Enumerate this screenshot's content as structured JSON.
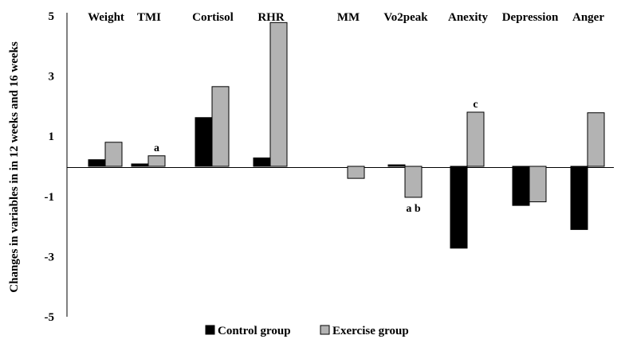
{
  "chart_data": {
    "type": "bar",
    "title": "",
    "ylabel": "Changes in variables in in 12 weeks and 16 weeks",
    "xlabel": "",
    "ylim": [
      -5,
      5
    ],
    "yticks": [
      5,
      3,
      1,
      -1,
      -3,
      -5
    ],
    "categories": [
      "Weight",
      "TMI",
      "Cortisol",
      "RHR",
      "MM",
      "Vo2peak",
      "Anexity",
      "Depression",
      "Anger"
    ],
    "series": [
      {
        "name": "Control group",
        "color": "#000000",
        "values": [
          0.22,
          0.08,
          1.62,
          0.28,
          0.0,
          0.05,
          -2.72,
          -1.3,
          -2.1
        ]
      },
      {
        "name": "Exercise group",
        "color": "#b3b3b3",
        "values": [
          0.8,
          0.35,
          2.65,
          4.78,
          -0.4,
          -1.03,
          1.8,
          -1.18,
          1.78
        ]
      }
    ],
    "annotations": [
      {
        "category": "TMI",
        "series": "Exercise group",
        "text": "a"
      },
      {
        "category": "Vo2peak",
        "series": "Exercise group",
        "text": "a b"
      },
      {
        "category": "Anexity",
        "series": "Exercise group",
        "text": "c"
      }
    ],
    "legend": {
      "placement": "bottom",
      "entries": [
        "Control group",
        "Exercise group"
      ]
    }
  }
}
